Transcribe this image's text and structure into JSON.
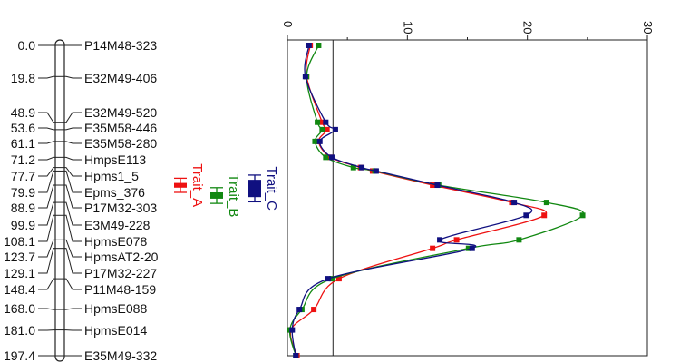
{
  "chart_data": [
    {
      "type": "linkage-map",
      "positions": [
        "0.0",
        "19.8",
        "48.9",
        "53.6",
        "61.1",
        "71.2",
        "77.7",
        "79.9",
        "88.9",
        "99.9",
        "108.1",
        "123.7",
        "129.1",
        "148.4",
        "168.0",
        "181.0",
        "197.4"
      ],
      "markers": [
        "P14M48-323",
        "E32M49-406",
        "E32M49-520",
        "E35M58-446",
        "E35M58-280",
        "HmpsE113",
        "Hpms1_5",
        "Epms_376",
        "P17M32-303",
        "E3M49-228",
        "HpmsE078",
        "HpmsAT2-20",
        "P17M32-227",
        "P11M48-159",
        "HpmsE088",
        "HpmsE014",
        "E35M49-332"
      ],
      "traits": [
        {
          "name": "Trait_A",
          "color": "#ee1111",
          "interval": [
            84.5,
            93.5
          ],
          "bar": [
            87.5,
            90.5
          ]
        },
        {
          "name": "Trait_B",
          "color": "#118811",
          "interval": [
            90.5,
            100.5
          ],
          "bar": [
            93.5,
            97.5
          ]
        },
        {
          "name": "Trait_C",
          "color": "#101080",
          "interval": [
            82.5,
            99.5
          ],
          "bar": [
            85.5,
            96.5
          ]
        }
      ]
    },
    {
      "type": "line",
      "orientation": "rotated",
      "value_axis": {
        "range": [
          0,
          30
        ],
        "ticks": [
          "0",
          "10",
          "20",
          "30"
        ]
      },
      "position_range": [
        0,
        197.4
      ],
      "threshold": 3.8,
      "series": [
        {
          "name": "Trait_A",
          "color": "#ee1111",
          "points": [
            [
              0,
              1.9
            ],
            [
              19.8,
              1.6
            ],
            [
              48.9,
              2.9
            ],
            [
              53.6,
              3.3
            ],
            [
              61.1,
              2.6
            ],
            [
              71.2,
              3.6
            ],
            [
              77.7,
              6.1
            ],
            [
              79.9,
              7.1
            ],
            [
              88.9,
              12.1
            ],
            [
              99.9,
              18.7
            ],
            [
              108.1,
              21.4
            ],
            [
              123.7,
              14.1
            ],
            [
              129.1,
              12.1
            ],
            [
              148.4,
              4.3
            ],
            [
              168.0,
              2.2
            ],
            [
              181.0,
              0.3
            ],
            [
              197.4,
              0.8
            ]
          ]
        },
        {
          "name": "Trait_B",
          "color": "#118811",
          "points": [
            [
              0,
              2.6
            ],
            [
              19.8,
              1.6
            ],
            [
              48.9,
              2.5
            ],
            [
              53.6,
              2.9
            ],
            [
              61.1,
              2.3
            ],
            [
              71.2,
              3.2
            ],
            [
              77.7,
              5.5
            ],
            [
              79.9,
              7.3
            ],
            [
              88.9,
              12.6
            ],
            [
              99.9,
              21.6
            ],
            [
              108.1,
              24.6
            ],
            [
              123.7,
              19.3
            ],
            [
              129.1,
              15.1
            ],
            [
              148.4,
              3.7
            ],
            [
              168.0,
              1.2
            ],
            [
              181.0,
              0.2
            ],
            [
              197.4,
              0.7
            ]
          ]
        },
        {
          "name": "Trait_C",
          "color": "#101080",
          "points": [
            [
              0,
              1.8
            ],
            [
              19.8,
              1.5
            ],
            [
              48.9,
              3.2
            ],
            [
              53.6,
              4.0
            ],
            [
              61.1,
              2.7
            ],
            [
              71.2,
              3.7
            ],
            [
              77.7,
              6.2
            ],
            [
              79.9,
              7.4
            ],
            [
              88.9,
              12.5
            ],
            [
              99.9,
              18.9
            ],
            [
              108.1,
              19.9
            ],
            [
              123.7,
              12.7
            ],
            [
              129.1,
              15.4
            ],
            [
              148.4,
              3.4
            ],
            [
              168.0,
              1.0
            ],
            [
              181.0,
              0.4
            ],
            [
              197.4,
              0.7
            ]
          ]
        }
      ]
    }
  ]
}
